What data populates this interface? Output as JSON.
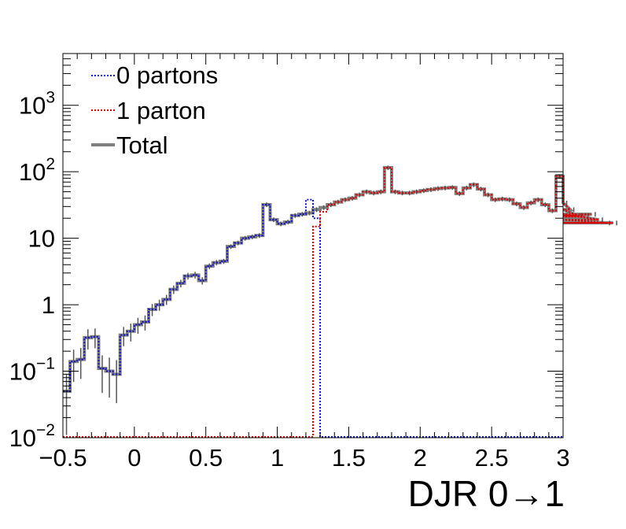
{
  "chart_data": {
    "type": "line",
    "xlabel": "DJR 0→1",
    "x_ticks": [
      "−0.5",
      "0",
      "0.5",
      "1",
      "1.5",
      "2",
      "2.5",
      "3"
    ],
    "y_ticks": [
      {
        "value": 0.01,
        "base": "10",
        "exp": "−2"
      },
      {
        "value": 0.1,
        "base": "10",
        "exp": "−1"
      },
      {
        "value": 1,
        "base": "1",
        "exp": ""
      },
      {
        "value": 10,
        "base": "10",
        "exp": ""
      },
      {
        "value": 100,
        "base": "10",
        "exp": "2"
      },
      {
        "value": 1000,
        "base": "10",
        "exp": "3"
      }
    ],
    "xlim": [
      -0.5,
      3.0
    ],
    "ylim": [
      0.01,
      6000
    ],
    "yscale": "log",
    "grid": false,
    "legend_position": "top-left",
    "bin_width": 0.05,
    "x_edges_start": -0.5,
    "total": [
      0.05,
      0.14,
      0.15,
      0.32,
      0.33,
      0.11,
      0.1,
      0.09,
      0.35,
      0.4,
      0.5,
      0.55,
      0.85,
      1.0,
      1.2,
      1.7,
      2.1,
      2.7,
      2.8,
      2.3,
      3.8,
      4.3,
      4.5,
      7.5,
      8.5,
      10,
      10.5,
      11,
      32,
      19,
      16.5,
      17.5,
      22,
      23,
      24,
      27,
      29,
      32,
      35,
      38,
      40,
      45,
      50,
      48,
      50,
      115,
      50,
      48,
      48,
      50,
      52,
      54,
      56,
      57,
      58,
      47,
      57,
      64,
      55,
      45,
      38,
      39,
      38,
      33,
      29,
      34,
      38,
      32,
      26,
      85,
      34,
      27,
      22,
      21,
      23,
      19,
      17,
      17
    ],
    "series": [
      {
        "name": "0 partons",
        "color": "#1010d0",
        "style": "dotted"
      },
      {
        "name": "1 parton",
        "color": "#e00000",
        "style": "dotted"
      },
      {
        "name": "Total",
        "color": "#808080",
        "style": "solid"
      }
    ],
    "zero_parton_last_bins": [
      38,
      20
    ],
    "one_parton_first_bins": [
      15,
      25
    ],
    "zero_parton_cutoff_x": 1.3,
    "one_parton_start_x": 1.25
  }
}
